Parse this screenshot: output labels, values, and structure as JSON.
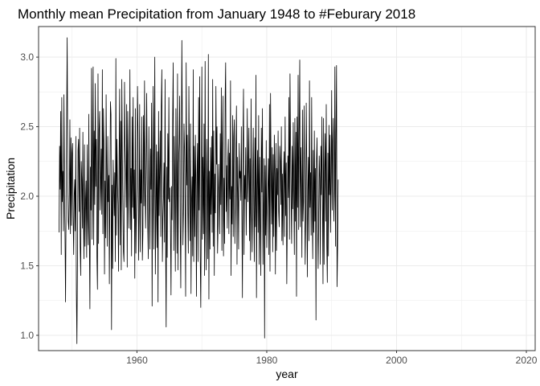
{
  "chart_data": {
    "type": "line",
    "title": "Monthly mean Precipitation from January 1948 to #Feburary 2018",
    "xlabel": "year",
    "ylabel": "Precipitation",
    "xlim": [
      1948,
      2018.2
    ],
    "ylim": [
      0.9,
      3.2
    ],
    "x_ticks": [
      "1960",
      "1980",
      "2000",
      "2020"
    ],
    "y_ticks": [
      "1.0",
      "1.5",
      "2.0",
      "2.5",
      "3.0"
    ],
    "grid": true,
    "legend": "none",
    "series": [
      {
        "x_start": 1948.0,
        "x_step_months": 1,
        "line_color": "#000000",
        "values": [
          1.74,
          2.36,
          2.05,
          2.61,
          1.58,
          2.71,
          1.96,
          2.18,
          1.75,
          2.73,
          2.05,
          1.71,
          1.24,
          1.95,
          2.54,
          3.14,
          2.24,
          1.82,
          1.76,
          2.01,
          2.55,
          1.73,
          2.42,
          1.79,
          2.31,
          2.38,
          1.85,
          1.58,
          2.01,
          2.12,
          1.75,
          2.43,
          1.31,
          0.94,
          1.54,
          2.33,
          2.41,
          1.89,
          2.49,
          1.64,
          1.43,
          2.25,
          2.12,
          1.77,
          2.46,
          1.87,
          1.55,
          2.37,
          1.64,
          1.97,
          2.11,
          1.56,
          2.37,
          1.84,
          1.65,
          2.59,
          1.72,
          1.19,
          2.21,
          1.9,
          2.92,
          1.69,
          2.18,
          2.93,
          1.65,
          2.47,
          1.94,
          2.81,
          2.07,
          2.41,
          1.56,
          1.33,
          2.88,
          1.66,
          2.48,
          2.61,
          1.9,
          2.07,
          2.34,
          1.87,
          2.91,
          1.73,
          2.63,
          2.38,
          1.44,
          2.11,
          1.7,
          2.73,
          2.13,
          1.64,
          2.43,
          1.96,
          2.15,
          1.37,
          2.11,
          2.68,
          2.59,
          1.04,
          2.08,
          1.48,
          2.26,
          2.06,
          1.86,
          2.17,
          1.53,
          2.99,
          1.72,
          2.41,
          2.09,
          1.94,
          1.46,
          2.28,
          2.77,
          1.65,
          2.54,
          1.47,
          2.84,
          2.28,
          1.94,
          1.6,
          1.53,
          2.82,
          2.37,
          2.2,
          1.92,
          2.66,
          1.49,
          2.61,
          2.27,
          1.77,
          2.12,
          2.91,
          1.76,
          2.2,
          1.57,
          2.57,
          1.92,
          2.71,
          1.84,
          2.19,
          1.41,
          2.63,
          1.59,
          1.86,
          2.07,
          2.79,
          2.44,
          1.54,
          1.86,
          2.66,
          1.6,
          2.19,
          1.95,
          2.57,
          1.54,
          1.73,
          2.58,
          1.93,
          2.83,
          2.05,
          1.77,
          2.17,
          2.74,
          2.12,
          1.78,
          1.55,
          2.5,
          1.99,
          1.62,
          2.34,
          2.05,
          2.67,
          1.21,
          2.16,
          2.79,
          1.62,
          2.21,
          3.0,
          1.44,
          1.88,
          2.37,
          1.63,
          2.32,
          1.24,
          2.61,
          1.86,
          2.19,
          2.47,
          1.71,
          2.65,
          2.91,
          1.53,
          1.84,
          1.99,
          2.24,
          1.67,
          2.84,
          1.66,
          1.06,
          2.21,
          1.56,
          2.45,
          1.98,
          2.71,
          1.96,
          2.06,
          1.78,
          1.29,
          2.07,
          1.83,
          2.55,
          2.96,
          1.61,
          2.43,
          2.04,
          1.46,
          2.63,
          2.07,
          1.59,
          2.88,
          1.47,
          2.24,
          2.38,
          2.72,
          1.8,
          1.34,
          2.21,
          3.12,
          2.47,
          1.65,
          1.89,
          2.52,
          2.34,
          1.94,
          1.28,
          2.96,
          2.08,
          2.44,
          1.88,
          1.59,
          2.79,
          2.23,
          1.68,
          2.52,
          1.3,
          1.97,
          2.14,
          1.57,
          2.91,
          1.53,
          2.36,
          1.71,
          2.44,
          2.08,
          1.28,
          2.16,
          2.38,
          1.53,
          2.71,
          1.9,
          2.86,
          1.57,
          1.2,
          1.89,
          2.93,
          1.69,
          2.28,
          1.73,
          2.52,
          1.43,
          2.97,
          1.81,
          1.47,
          2.41,
          2.06,
          1.55,
          3.02,
          1.26,
          2.18,
          1.62,
          2.35,
          1.87,
          2.43,
          1.74,
          2.84,
          1.64,
          2.47,
          1.43,
          2.16,
          1.88,
          2.79,
          2.23,
          2.5,
          1.59,
          1.79,
          2.23,
          2.02,
          1.73,
          2.45,
          1.94,
          2.78,
          1.61,
          2.33,
          2.72,
          1.57,
          2.13,
          1.66,
          2.69,
          2.96,
          1.89,
          2.22,
          1.77,
          2.27,
          2.41,
          1.73,
          2.31,
          1.98,
          2.83,
          1.43,
          2.07,
          1.8,
          2.58,
          1.71,
          2.43,
          2.55,
          1.66,
          1.9,
          2.37,
          2.65,
          1.51,
          2.28,
          2.03,
          1.62,
          2.38,
          2.13,
          2.18,
          1.97,
          2.5,
          1.89,
          1.27,
          2.37,
          2.77,
          1.58,
          2.15,
          1.98,
          2.35,
          1.72,
          2.11,
          2.63,
          1.96,
          2.21,
          2.49,
          1.68,
          2.27,
          1.54,
          2.7,
          1.91,
          1.6,
          2.12,
          2.49,
          1.92,
          1.53,
          2.42,
          1.78,
          2.87,
          1.27,
          2.05,
          2.33,
          1.74,
          2.58,
          1.51,
          2.28,
          1.84,
          1.43,
          2.49,
          2.03,
          2.63,
          1.51,
          1.91,
          2.27,
          0.98,
          2.22,
          1.72,
          2.4,
          1.63,
          1.92,
          2.08,
          2.27,
          1.58,
          2.66,
          1.46,
          2.74,
          2.19,
          1.8,
          2.35,
          1.6,
          2.3,
          1.71,
          2.44,
          2.16,
          1.44,
          2.38,
          1.61,
          2.2,
          2.01,
          2.47,
          1.89,
          1.78,
          2.36,
          2.25,
          1.94,
          2.5,
          1.68,
          2.16,
          1.65,
          2.13,
          2.32,
          1.71,
          2.57,
          1.86,
          2.24,
          1.37,
          1.82,
          2.29,
          1.99,
          2.71,
          1.69,
          2.88,
          2.38,
          1.98,
          1.66,
          2.36,
          1.91,
          2.53,
          2.04,
          1.58,
          2.56,
          1.82,
          2.46,
          1.28,
          2.57,
          1.92,
          2.87,
          1.76,
          2.47,
          2.98,
          1.78,
          2.35,
          2.06,
          1.56,
          2.62,
          1.82,
          1.96,
          2.65,
          2.16,
          1.51,
          1.83,
          2.67,
          2.23,
          1.42,
          2.04,
          2.28,
          1.68,
          2.83,
          1.92,
          2.17,
          1.72,
          2.71,
          1.9,
          1.55,
          2.33,
          1.74,
          2.47,
          1.82,
          2.2,
          1.11,
          2.26,
          2.42,
          1.81,
          1.48,
          1.87,
          2.29,
          2.13,
          1.51,
          2.36,
          2.01,
          2.57,
          1.94,
          1.37,
          2.56,
          1.51,
          2.18,
          2.45,
          1.82,
          2.66,
          1.65,
          1.38,
          2.31,
          1.57,
          2.51,
          2.01,
          2.44,
          1.74,
          2.14,
          2.76,
          1.9,
          2.39,
          2.56,
          1.82,
          2.04,
          2.93,
          1.64,
          2.41,
          2.94,
          1.35,
          1.63,
          2.12
        ]
      }
    ]
  }
}
